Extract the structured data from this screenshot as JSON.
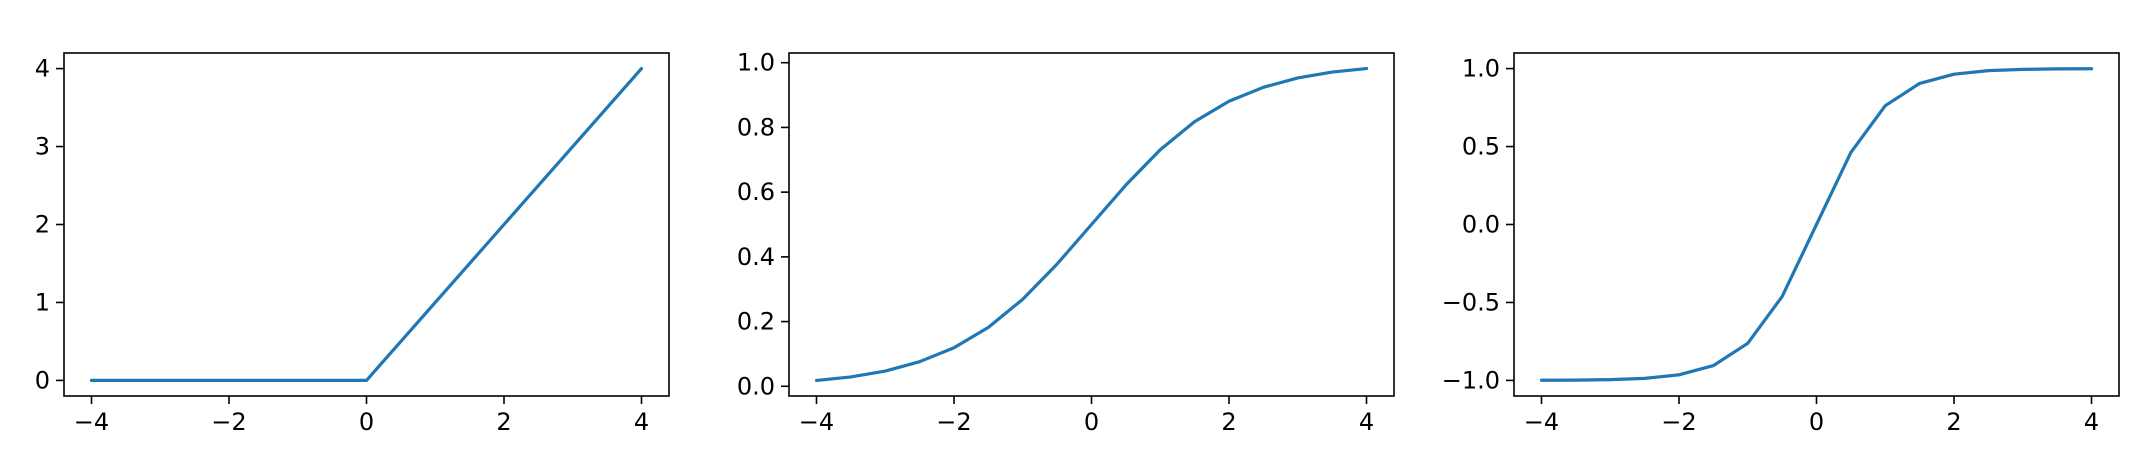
{
  "chart_data": [
    {
      "type": "line",
      "title": "",
      "xlabel": "",
      "ylabel": "",
      "xlim": [
        -4.4,
        4.4
      ],
      "ylim": [
        -0.2,
        4.2
      ],
      "grid": false,
      "x_ticks": [
        -4,
        -2,
        0,
        2,
        4
      ],
      "x_tick_labels": [
        "−4",
        "−2",
        "0",
        "2",
        "4"
      ],
      "y_ticks": [
        0,
        1,
        2,
        3,
        4
      ],
      "y_tick_labels": [
        "0",
        "1",
        "2",
        "3",
        "4"
      ],
      "series": [
        {
          "color": "#1f77b4",
          "x": [
            -4,
            -3,
            -2,
            -1,
            0,
            1,
            2,
            3,
            4
          ],
          "y": [
            0,
            0,
            0,
            0,
            0,
            1,
            2,
            3,
            4
          ]
        }
      ]
    },
    {
      "type": "line",
      "title": "",
      "xlabel": "",
      "ylabel": "",
      "xlim": [
        -4.4,
        4.4
      ],
      "ylim": [
        -0.03,
        1.03
      ],
      "grid": false,
      "x_ticks": [
        -4,
        -2,
        0,
        2,
        4
      ],
      "x_tick_labels": [
        "−4",
        "−2",
        "0",
        "2",
        "4"
      ],
      "y_ticks": [
        0.0,
        0.2,
        0.4,
        0.6,
        0.8,
        1.0
      ],
      "y_tick_labels": [
        "0.0",
        "0.2",
        "0.4",
        "0.6",
        "0.8",
        "1.0"
      ],
      "series": [
        {
          "color": "#1f77b4",
          "x": [
            -4,
            -3.5,
            -3,
            -2.5,
            -2,
            -1.5,
            -1,
            -0.5,
            0,
            0.5,
            1,
            1.5,
            2,
            2.5,
            3,
            3.5,
            4
          ],
          "y": [
            0.018,
            0.029,
            0.047,
            0.076,
            0.119,
            0.182,
            0.269,
            0.378,
            0.5,
            0.622,
            0.731,
            0.818,
            0.881,
            0.924,
            0.953,
            0.971,
            0.982
          ]
        }
      ]
    },
    {
      "type": "line",
      "title": "",
      "xlabel": "",
      "ylabel": "",
      "xlim": [
        -4.4,
        4.4
      ],
      "ylim": [
        -1.1,
        1.1
      ],
      "grid": false,
      "x_ticks": [
        -4,
        -2,
        0,
        2,
        4
      ],
      "x_tick_labels": [
        "−4",
        "−2",
        "0",
        "2",
        "4"
      ],
      "y_ticks": [
        -1.0,
        -0.5,
        0.0,
        0.5,
        1.0
      ],
      "y_tick_labels": [
        "−1.0",
        "−0.5",
        "0.0",
        "0.5",
        "1.0"
      ],
      "series": [
        {
          "color": "#1f77b4",
          "x": [
            -4,
            -3.5,
            -3,
            -2.5,
            -2,
            -1.5,
            -1,
            -0.5,
            0,
            0.5,
            1,
            1.5,
            2,
            2.5,
            3,
            3.5,
            4
          ],
          "y": [
            -0.999,
            -0.998,
            -0.995,
            -0.987,
            -0.964,
            -0.905,
            -0.762,
            -0.462,
            0.0,
            0.462,
            0.762,
            0.905,
            0.964,
            0.987,
            0.995,
            0.998,
            0.999
          ]
        }
      ]
    }
  ]
}
